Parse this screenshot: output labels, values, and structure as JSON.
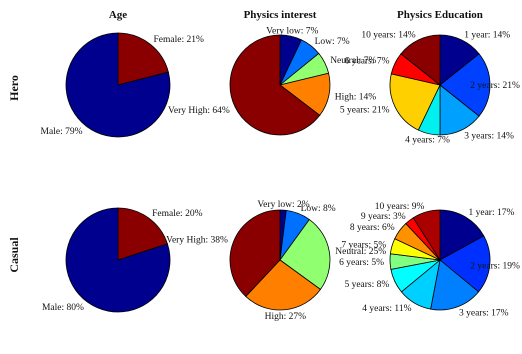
{
  "column_titles": [
    "Age",
    "Physics interest",
    "Physics Education"
  ],
  "row_titles": [
    "Hero",
    "Casual"
  ],
  "colors": {
    "darkblue": "#00008f",
    "blue": "#0050ff",
    "lightblue": "#00b0ff",
    "cyan": "#00ffff",
    "green": "#90ff70",
    "yellow": "#ffe000",
    "orange": "#ff8000",
    "red": "#ff0000",
    "darkred": "#8a0000"
  },
  "chart_data": [
    {
      "type": "pie",
      "title": "Age",
      "row": "Hero",
      "slices": [
        {
          "label": "Female: 21%",
          "value": 21,
          "color": "#8a0000"
        },
        {
          "label": "Male: 79%",
          "value": 79,
          "color": "#00008f"
        }
      ]
    },
    {
      "type": "pie",
      "title": "Physics interest",
      "row": "Hero",
      "slices": [
        {
          "label": "Very low: 7%",
          "value": 7,
          "color": "#00008f"
        },
        {
          "label": "Low: 7%",
          "value": 7,
          "color": "#0070ff"
        },
        {
          "label": "Neutral: 7%",
          "value": 7,
          "color": "#90ff70"
        },
        {
          "label": "High: 14%",
          "value": 14,
          "color": "#ff8000"
        },
        {
          "label": "Very High: 64%",
          "value": 64,
          "color": "#8a0000"
        }
      ]
    },
    {
      "type": "pie",
      "title": "Physics Education",
      "row": "Hero",
      "slices": [
        {
          "label": "1 year: 14%",
          "value": 14,
          "color": "#00008f"
        },
        {
          "label": "2 years: 21%",
          "value": 21,
          "color": "#0040ff"
        },
        {
          "label": "3 years: 14%",
          "value": 14,
          "color": "#00a0ff"
        },
        {
          "label": "4 years: 7%",
          "value": 7,
          "color": "#00f0f0"
        },
        {
          "label": "5 years: 21%",
          "value": 21,
          "color": "#ffd000"
        },
        {
          "label": "6 years: 7%",
          "value": 7,
          "color": "#ff0000"
        },
        {
          "label": "10 years: 14%",
          "value": 14,
          "color": "#8a0000"
        }
      ]
    },
    {
      "type": "pie",
      "title": "Age",
      "row": "Casual",
      "slices": [
        {
          "label": "Female: 20%",
          "value": 20,
          "color": "#8a0000"
        },
        {
          "label": "Male: 80%",
          "value": 80,
          "color": "#00008f"
        }
      ]
    },
    {
      "type": "pie",
      "title": "Physics interest",
      "row": "Casual",
      "slices": [
        {
          "label": "Very low: 2%",
          "value": 2,
          "color": "#00008f"
        },
        {
          "label": "Low: 8%",
          "value": 8,
          "color": "#0070ff"
        },
        {
          "label": "Neutral: 25%",
          "value": 25,
          "color": "#90ff70"
        },
        {
          "label": "High: 27%",
          "value": 27,
          "color": "#ff8000"
        },
        {
          "label": "Very High: 38%",
          "value": 38,
          "color": "#8a0000"
        }
      ]
    },
    {
      "type": "pie",
      "title": "Physics Education",
      "row": "Casual",
      "slices": [
        {
          "label": "1 year: 17%",
          "value": 17,
          "color": "#00008f"
        },
        {
          "label": "2 years: 19%",
          "value": 19,
          "color": "#0030ff"
        },
        {
          "label": "3 years: 17%",
          "value": 17,
          "color": "#0080ff"
        },
        {
          "label": "4 years: 11%",
          "value": 11,
          "color": "#00d0ff"
        },
        {
          "label": "5 years: 8%",
          "value": 8,
          "color": "#00ffff"
        },
        {
          "label": "6 years: 5%",
          "value": 5,
          "color": "#80ff80"
        },
        {
          "label": "7 years: 5%",
          "value": 5,
          "color": "#ffff00"
        },
        {
          "label": "8 years: 6%",
          "value": 6,
          "color": "#ff9000"
        },
        {
          "label": "9 years: 3%",
          "value": 3,
          "color": "#ff0000"
        },
        {
          "label": "10 years: 9%",
          "value": 9,
          "color": "#aa0000"
        }
      ]
    }
  ]
}
